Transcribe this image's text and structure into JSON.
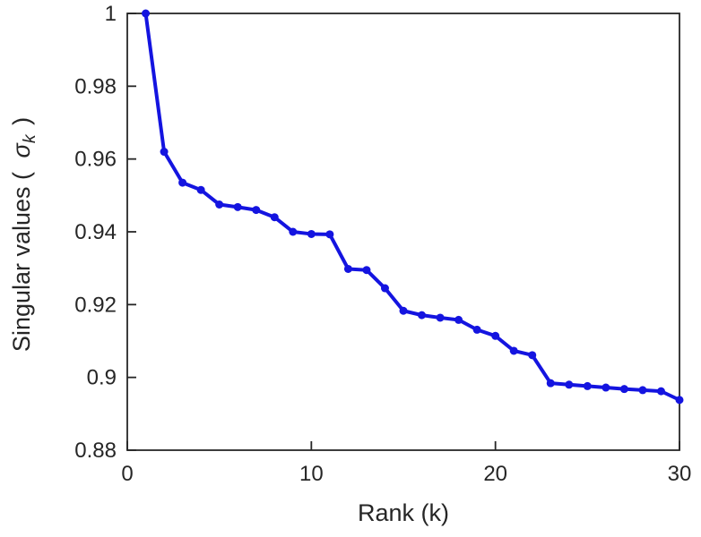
{
  "chart_data": {
    "type": "line",
    "title": "",
    "xlabel": "Rank (k)",
    "ylabel_prefix": "Singular values ( ",
    "ylabel_sigma": "σ",
    "ylabel_sub": "k",
    "ylabel_suffix": " )",
    "x": [
      1,
      2,
      3,
      4,
      5,
      6,
      7,
      8,
      9,
      10,
      11,
      12,
      13,
      14,
      15,
      16,
      17,
      18,
      19,
      20,
      21,
      22,
      23,
      24,
      25,
      26,
      27,
      28,
      29,
      30
    ],
    "y": [
      1.0,
      0.962,
      0.9535,
      0.9515,
      0.9475,
      0.9468,
      0.946,
      0.944,
      0.94,
      0.9394,
      0.9393,
      0.9298,
      0.9295,
      0.9245,
      0.9183,
      0.9171,
      0.9164,
      0.9158,
      0.9131,
      0.9114,
      0.9073,
      0.9061,
      0.8984,
      0.898,
      0.8976,
      0.8972,
      0.8968,
      0.8965,
      0.8962,
      0.8938
    ],
    "xlim": [
      0,
      30
    ],
    "ylim": [
      0.88,
      1.0
    ],
    "xticks": {
      "values": [
        0,
        10,
        20,
        30
      ],
      "labels": [
        "0",
        "10",
        "20",
        "30"
      ]
    },
    "yticks": {
      "values": [
        0.88,
        0.9,
        0.92,
        0.94,
        0.96,
        0.98,
        1
      ],
      "labels": [
        "0.88",
        "0.9",
        "0.92",
        "0.94",
        "0.96",
        "0.98",
        "1"
      ]
    },
    "grid": false,
    "legend": null,
    "line_color": "#1414e0",
    "marker": "circle",
    "marker_color": "#1414e0",
    "axis_color": "#262626",
    "background_color": "#ffffff"
  }
}
